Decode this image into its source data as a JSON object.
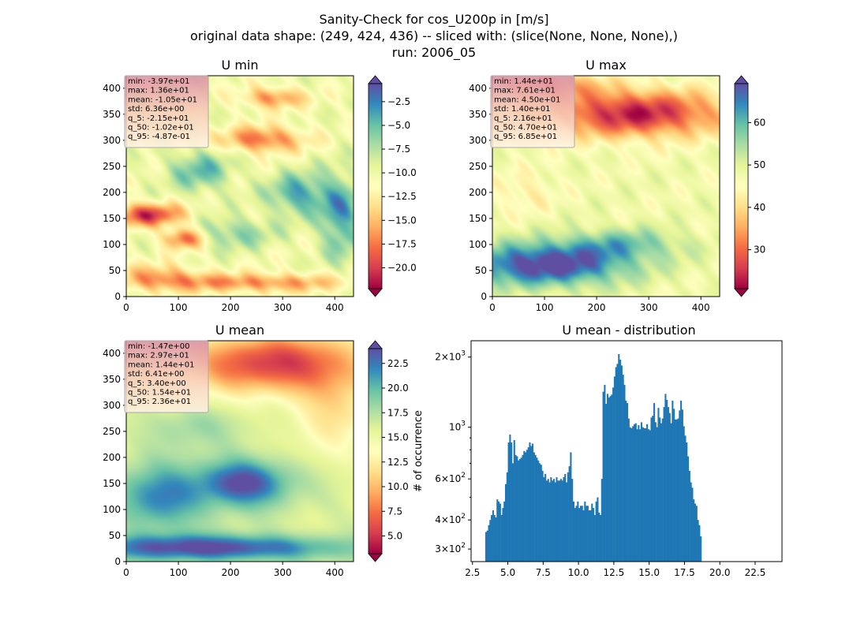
{
  "suptitle": [
    "Sanity-Check for cos_U200p in [m/s]",
    "original data shape: (249, 424, 436) -- sliced with: (slice(None, None, None),)",
    "run: 2006_05"
  ],
  "colormap_name": "Spectral",
  "colors": {
    "hist_bar": "#1f77b4",
    "stats_box_bg": "#f5f5f5"
  },
  "panels": [
    {
      "title": "U min",
      "xticks": [
        "0",
        "100",
        "200",
        "300",
        "400"
      ],
      "yticks": [
        "0",
        "50",
        "100",
        "150",
        "200",
        "250",
        "300",
        "350",
        "400"
      ],
      "stats": [
        "min: -3.97e+01",
        "max: 1.36e+01",
        "mean: -1.05e+01",
        "std: 6.36e+00",
        "q_5: -2.15e+01",
        "q_50: -1.02e+01",
        "q_95: -4.87e-01"
      ],
      "colorbar": {
        "range": [
          -22.2,
          -0.6
        ],
        "extend": "both",
        "ticks": [
          {
            "v": -2.5,
            "t": "−2.5"
          },
          {
            "v": -5,
            "t": "−5.0"
          },
          {
            "v": -7.5,
            "t": "−7.5"
          },
          {
            "v": -10,
            "t": "−10.0"
          },
          {
            "v": -12.5,
            "t": "−12.5"
          },
          {
            "v": -15,
            "t": "−15.0"
          },
          {
            "v": -17.5,
            "t": "−17.5"
          },
          {
            "v": -20,
            "t": "−20.0"
          }
        ]
      }
    },
    {
      "title": "U max",
      "xticks": [
        "0",
        "100",
        "200",
        "300",
        "400"
      ],
      "yticks": [
        "0",
        "50",
        "100",
        "150",
        "200",
        "250",
        "300",
        "350",
        "400"
      ],
      "stats": [
        "min: 1.44e+01",
        "max: 7.61e+01",
        "mean: 4.50e+01",
        "std: 1.40e+01",
        "q_5: 2.16e+01",
        "q_50: 4.70e+01",
        "q_95: 6.85e+01"
      ],
      "colorbar": {
        "range": [
          20.8,
          69.2
        ],
        "extend": "both",
        "ticks": [
          {
            "v": 30,
            "t": "30"
          },
          {
            "v": 40,
            "t": "40"
          },
          {
            "v": 50,
            "t": "50"
          },
          {
            "v": 60,
            "t": "60"
          }
        ]
      }
    },
    {
      "title": "U mean",
      "xticks": [
        "0",
        "100",
        "200",
        "300",
        "400"
      ],
      "yticks": [
        "0",
        "50",
        "100",
        "150",
        "200",
        "250",
        "300",
        "350",
        "400"
      ],
      "stats": [
        "min: -1.47e+00",
        "max: 2.97e+01",
        "mean: 1.44e+01",
        "std: 6.41e+00",
        "q_5: 3.40e+00",
        "q_50: 1.54e+01",
        "q_95: 2.36e+01"
      ],
      "colorbar": {
        "range": [
          3.2,
          24.0
        ],
        "extend": "both",
        "ticks": [
          {
            "v": 5,
            "t": "5.0"
          },
          {
            "v": 7.5,
            "t": "7.5"
          },
          {
            "v": 10,
            "t": "10.0"
          },
          {
            "v": 12.5,
            "t": "12.5"
          },
          {
            "v": 15,
            "t": "15.0"
          },
          {
            "v": 17.5,
            "t": "17.5"
          },
          {
            "v": 20,
            "t": "20.0"
          },
          {
            "v": 22.5,
            "t": "22.5"
          }
        ]
      }
    }
  ],
  "chart_data": [
    {
      "type": "heatmap",
      "title": "U min",
      "colormap": "Spectral",
      "x_range": [
        0,
        436
      ],
      "y_range": [
        0,
        424
      ],
      "color_range": [
        -22.2,
        -0.6
      ]
    },
    {
      "type": "heatmap",
      "title": "U max",
      "colormap": "Spectral",
      "x_range": [
        0,
        436
      ],
      "y_range": [
        0,
        424
      ],
      "color_range": [
        20.8,
        69.2
      ]
    },
    {
      "type": "heatmap",
      "title": "U mean",
      "colormap": "Spectral",
      "x_range": [
        0,
        436
      ],
      "y_range": [
        0,
        424
      ],
      "color_range": [
        3.2,
        24.0
      ]
    },
    {
      "type": "bar",
      "title": "U mean - distribution",
      "xlabel": "",
      "ylabel": "# of occurrence",
      "yscale": "log",
      "xlim": [
        2.4,
        24.4
      ],
      "ylim": [
        265,
        2350
      ],
      "xticks": [
        "2.5",
        "5.0",
        "7.5",
        "10.0",
        "12.5",
        "15.0",
        "17.5",
        "20.0",
        "22.5"
      ],
      "yticks": [
        {
          "v": 300,
          "mantissa": "3",
          "exp": "2"
        },
        {
          "v": 400,
          "mantissa": "4",
          "exp": "2"
        },
        {
          "v": 600,
          "mantissa": "6",
          "exp": "2"
        },
        {
          "v": 1000,
          "mantissa": "",
          "exp": "3"
        },
        {
          "v": 2000,
          "mantissa": "2",
          "exp": "3"
        }
      ],
      "bin_start": 3.4,
      "bin_width": 0.1,
      "values": [
        355,
        360,
        380,
        400,
        420,
        440,
        420,
        410,
        490,
        480,
        470,
        420,
        450,
        480,
        570,
        640,
        860,
        930,
        860,
        700,
        880,
        760,
        750,
        720,
        730,
        740,
        760,
        790,
        780,
        800,
        820,
        860,
        830,
        850,
        780,
        760,
        740,
        720,
        700,
        690,
        650,
        610,
        630,
        590,
        600,
        580,
        610,
        590,
        600,
        580,
        610,
        590,
        590,
        600,
        590,
        610,
        630,
        580,
        640,
        680,
        780,
        600,
        480,
        450,
        460,
        480,
        450,
        460,
        460,
        440,
        480,
        460,
        460,
        440,
        440,
        470,
        450,
        420,
        480,
        500,
        430,
        420,
        600,
        1420,
        1520,
        1260,
        1390,
        1340,
        1360,
        1380,
        1480,
        1650,
        1810,
        1870,
        2060,
        1950,
        1840,
        1680,
        1520,
        1300,
        1270,
        1090,
        1000,
        990,
        1010,
        1030,
        1040,
        980,
        1020,
        980,
        1050,
        1000,
        990,
        990,
        1030,
        980,
        970,
        1100,
        1120,
        1270,
        1050,
        1000,
        1210,
        1100,
        1040,
        1090,
        1220,
        1390,
        1310,
        1220,
        1150,
        1040,
        1300,
        1200,
        1080,
        1080,
        1090,
        1180,
        1300,
        1190,
        1010,
        920,
        860,
        750,
        650,
        580,
        550,
        490,
        470,
        460,
        400,
        380,
        340
      ]
    }
  ]
}
